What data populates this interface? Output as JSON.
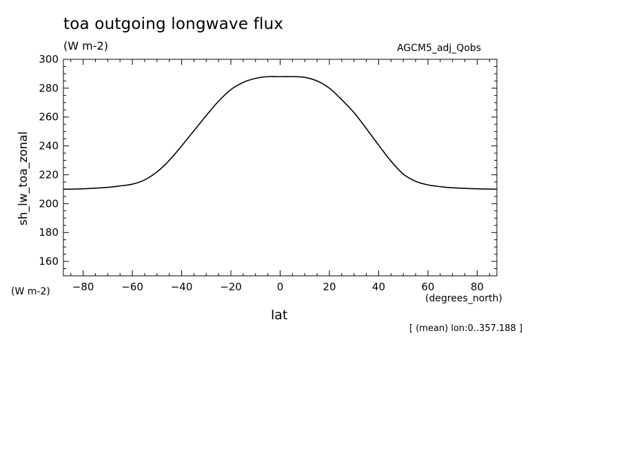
{
  "chart_data": {
    "type": "line",
    "title": "toa outgoing longwave flux",
    "units": "(W m-2)",
    "model": "AGCM5_adj_Qobs",
    "ylabel": "sh_lw_toa_zonal",
    "y_unit": "(W m-2)",
    "xlabel": "lat",
    "x_unit": "(degrees_north)",
    "note": "[ (mean) lon:0..357.188 ]",
    "xlim": [
      -88,
      88
    ],
    "ylim": [
      150,
      300
    ],
    "xticks": [
      -80,
      -60,
      -40,
      -20,
      0,
      20,
      40,
      60,
      80
    ],
    "yticks": [
      160,
      180,
      200,
      220,
      240,
      260,
      280,
      300
    ],
    "grid": false,
    "series": [
      {
        "x": [
          -88,
          -80,
          -70,
          -65,
          -60,
          -55,
          -50,
          -45,
          -40,
          -35,
          -30,
          -25,
          -20,
          -15,
          -10,
          -5,
          0,
          5,
          10,
          15,
          20,
          25,
          30,
          35,
          40,
          45,
          50,
          55,
          60,
          65,
          70,
          80,
          88
        ],
        "y": [
          210,
          210.3,
          211.3,
          212.3,
          213.5,
          216.5,
          222,
          230,
          240,
          250.5,
          261,
          271,
          279,
          284,
          286.8,
          288,
          288,
          288,
          287.5,
          285,
          280,
          272,
          263,
          252,
          240.5,
          229.5,
          220.5,
          215.5,
          213,
          211.8,
          211,
          210.3,
          210
        ]
      }
    ]
  }
}
